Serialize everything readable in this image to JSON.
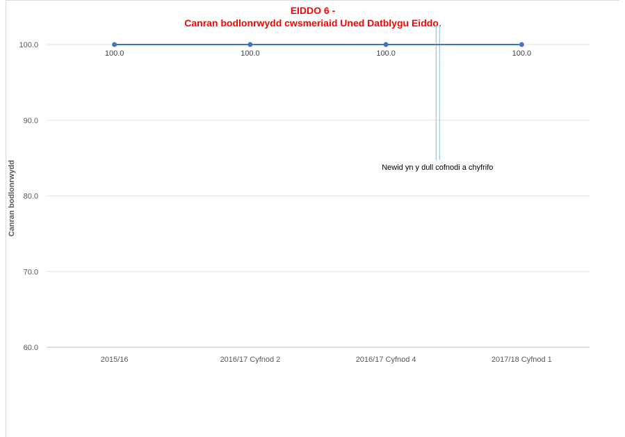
{
  "chart_data": {
    "type": "line",
    "title": [
      "EIDDO 6 -",
      "Canran bodlonrwydd cwsmeriaid Uned Datblygu Eiddo."
    ],
    "ylabel": "Canran bodlonrwydd",
    "xlabel": "",
    "categories": [
      "2015/16",
      "2016/17 Cyfnod 2",
      "2016/17 Cyfnod 4",
      "2017/18 Cyfnod 1"
    ],
    "series": [
      {
        "values": [
          100.0,
          100.0,
          100.0,
          100.0
        ],
        "color": "#4472c4"
      }
    ],
    "data_labels": [
      "100.0",
      "100.0",
      "100.0",
      "100.0"
    ],
    "ylim": [
      60,
      100
    ],
    "yticks": [
      "60.0",
      "70.0",
      "80.0",
      "90.0",
      "100.0"
    ],
    "grid": true,
    "annotation": "Newid yn y dull cofnodi a chyfrifo"
  }
}
